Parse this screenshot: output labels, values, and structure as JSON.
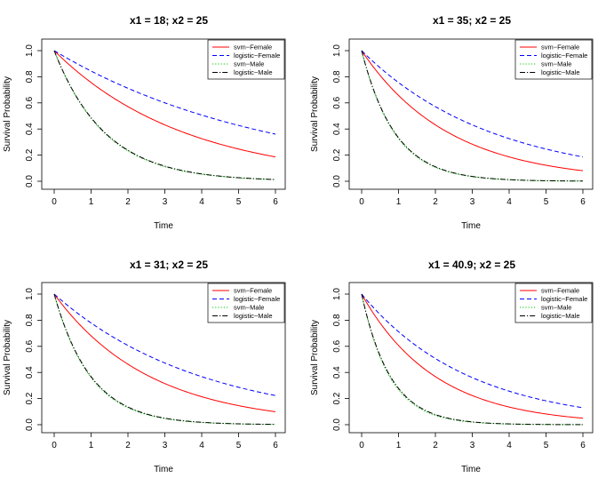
{
  "chart_data": [
    {
      "type": "line",
      "title": "x1 = 18; x2 = 25",
      "xlabel": "Time",
      "ylabel": "Survival Probability",
      "xlim": [
        0,
        6
      ],
      "ylim": [
        0,
        1
      ],
      "xticks": [
        "0",
        "1",
        "2",
        "3",
        "4",
        "5",
        "6"
      ],
      "yticks": [
        "0.0",
        "0.2",
        "0.4",
        "0.6",
        "0.8",
        "1.0"
      ],
      "legend_position": "top-right",
      "x": [
        0,
        1,
        2,
        3,
        4,
        5,
        6
      ],
      "series": [
        {
          "name": "svm−Female",
          "rate": 0.28,
          "values": [
            1.0,
            0.756,
            0.571,
            0.432,
            0.326,
            0.247,
            0.186
          ]
        },
        {
          "name": "logistic−Female",
          "rate": 0.17,
          "values": [
            1.0,
            0.844,
            0.712,
            0.6,
            0.507,
            0.427,
            0.361
          ]
        },
        {
          "name": "svm−Male",
          "rate": 0.73,
          "values": [
            1.0,
            0.482,
            0.232,
            0.112,
            0.054,
            0.026,
            0.013
          ]
        },
        {
          "name": "logistic−Male",
          "rate": 0.72,
          "values": [
            1.0,
            0.487,
            0.237,
            0.115,
            0.056,
            0.027,
            0.013
          ]
        }
      ]
    },
    {
      "type": "line",
      "title": "x1 = 35; x2 = 25",
      "xlabel": "Time",
      "ylabel": "Survival Probability",
      "xlim": [
        0,
        6
      ],
      "ylim": [
        0,
        1
      ],
      "xticks": [
        "0",
        "1",
        "2",
        "3",
        "4",
        "5",
        "6"
      ],
      "yticks": [
        "0.0",
        "0.2",
        "0.4",
        "0.6",
        "0.8",
        "1.0"
      ],
      "legend_position": "top-right",
      "x": [
        0,
        1,
        2,
        3,
        4,
        5,
        6
      ],
      "series": [
        {
          "name": "svm−Female",
          "rate": 0.42,
          "values": [
            1.0,
            0.657,
            0.432,
            0.284,
            0.186,
            0.122,
            0.08
          ]
        },
        {
          "name": "logistic−Female",
          "rate": 0.28,
          "values": [
            1.0,
            0.756,
            0.571,
            0.432,
            0.326,
            0.247,
            0.186
          ]
        },
        {
          "name": "svm−Male",
          "rate": 1.12,
          "values": [
            1.0,
            0.326,
            0.106,
            0.035,
            0.011,
            0.004,
            0.001
          ]
        },
        {
          "name": "logistic−Male",
          "rate": 1.1,
          "values": [
            1.0,
            0.333,
            0.111,
            0.037,
            0.012,
            0.004,
            0.001
          ]
        }
      ]
    },
    {
      "type": "line",
      "title": "x1 = 31; x2 = 25",
      "xlabel": "Time",
      "ylabel": "Survival Probability",
      "xlim": [
        0,
        6
      ],
      "ylim": [
        0,
        1
      ],
      "xticks": [
        "0",
        "1",
        "2",
        "3",
        "4",
        "5",
        "6"
      ],
      "yticks": [
        "0.0",
        "0.2",
        "0.4",
        "0.6",
        "0.8",
        "1.0"
      ],
      "legend_position": "top-right",
      "x": [
        0,
        1,
        2,
        3,
        4,
        5,
        6
      ],
      "series": [
        {
          "name": "svm−Female",
          "rate": 0.385,
          "values": [
            1.0,
            0.68,
            0.463,
            0.315,
            0.214,
            0.146,
            0.099
          ]
        },
        {
          "name": "logistic−Female",
          "rate": 0.25,
          "values": [
            1.0,
            0.779,
            0.607,
            0.472,
            0.368,
            0.287,
            0.223
          ]
        },
        {
          "name": "svm−Male",
          "rate": 1.02,
          "values": [
            1.0,
            0.361,
            0.13,
            0.047,
            0.017,
            0.006,
            0.002
          ]
        },
        {
          "name": "logistic−Male",
          "rate": 1.0,
          "values": [
            1.0,
            0.368,
            0.135,
            0.05,
            0.018,
            0.007,
            0.002
          ]
        }
      ]
    },
    {
      "type": "line",
      "title": "x1 = 40.9; x2 = 25",
      "xlabel": "Time",
      "ylabel": "Survival Probability",
      "xlim": [
        0,
        6
      ],
      "ylim": [
        0,
        1
      ],
      "xticks": [
        "0",
        "1",
        "2",
        "3",
        "4",
        "5",
        "6"
      ],
      "yticks": [
        "0.0",
        "0.2",
        "0.4",
        "0.6",
        "0.8",
        "1.0"
      ],
      "legend_position": "top-right",
      "x": [
        0,
        1,
        2,
        3,
        4,
        5,
        6
      ],
      "series": [
        {
          "name": "svm−Female",
          "rate": 0.5,
          "values": [
            1.0,
            0.607,
            0.368,
            0.223,
            0.135,
            0.082,
            0.05
          ]
        },
        {
          "name": "logistic−Female",
          "rate": 0.34,
          "values": [
            1.0,
            0.712,
            0.507,
            0.361,
            0.257,
            0.183,
            0.13
          ]
        },
        {
          "name": "svm−Male",
          "rate": 1.32,
          "values": [
            1.0,
            0.267,
            0.071,
            0.019,
            0.005,
            0.001,
            0.0
          ]
        },
        {
          "name": "logistic−Male",
          "rate": 1.28,
          "values": [
            1.0,
            0.278,
            0.077,
            0.021,
            0.006,
            0.002,
            0.0
          ]
        }
      ]
    }
  ],
  "colors": {
    "svm_female": "#ff0000",
    "logistic_female": "#0000ff",
    "svm_male": "#00cc00",
    "logistic_male": "#000000"
  }
}
